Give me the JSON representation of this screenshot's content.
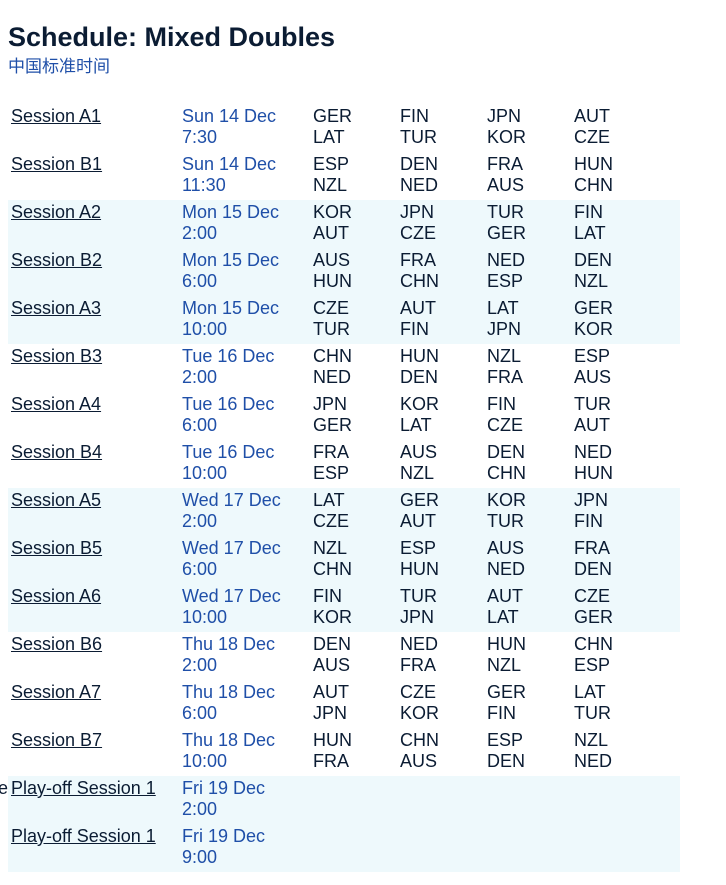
{
  "page": {
    "title": "Schedule: Mixed Doubles",
    "subtitle": "中国标准时间"
  },
  "sessions": [
    {
      "name": "Session A1",
      "day": "Sun 14 Dec",
      "time": "7:30",
      "matches": [
        [
          "GER",
          "LAT"
        ],
        [
          "FIN",
          "TUR"
        ],
        [
          "JPN",
          "KOR"
        ],
        [
          "AUT",
          "CZE"
        ]
      ]
    },
    {
      "name": "Session B1",
      "day": "Sun 14 Dec",
      "time": "11:30",
      "matches": [
        [
          "ESP",
          "NZL"
        ],
        [
          "DEN",
          "NED"
        ],
        [
          "FRA",
          "AUS"
        ],
        [
          "HUN",
          "CHN"
        ]
      ]
    },
    {
      "name": "Session A2",
      "day": "Mon 15 Dec",
      "time": "2:00",
      "matches": [
        [
          "KOR",
          "AUT"
        ],
        [
          "JPN",
          "CZE"
        ],
        [
          "TUR",
          "GER"
        ],
        [
          "FIN",
          "LAT"
        ]
      ]
    },
    {
      "name": "Session B2",
      "day": "Mon 15 Dec",
      "time": "6:00",
      "matches": [
        [
          "AUS",
          "HUN"
        ],
        [
          "FRA",
          "CHN"
        ],
        [
          "NED",
          "ESP"
        ],
        [
          "DEN",
          "NZL"
        ]
      ]
    },
    {
      "name": "Session A3",
      "day": "Mon 15 Dec",
      "time": "10:00",
      "matches": [
        [
          "CZE",
          "TUR"
        ],
        [
          "AUT",
          "FIN"
        ],
        [
          "LAT",
          "JPN"
        ],
        [
          "GER",
          "KOR"
        ]
      ]
    },
    {
      "name": "Session B3",
      "day": "Tue 16 Dec",
      "time": "2:00",
      "matches": [
        [
          "CHN",
          "NED"
        ],
        [
          "HUN",
          "DEN"
        ],
        [
          "NZL",
          "FRA"
        ],
        [
          "ESP",
          "AUS"
        ]
      ]
    },
    {
      "name": "Session A4",
      "day": "Tue 16 Dec",
      "time": "6:00",
      "matches": [
        [
          "JPN",
          "GER"
        ],
        [
          "KOR",
          "LAT"
        ],
        [
          "FIN",
          "CZE"
        ],
        [
          "TUR",
          "AUT"
        ]
      ]
    },
    {
      "name": "Session B4",
      "day": "Tue 16 Dec",
      "time": "10:00",
      "matches": [
        [
          "FRA",
          "ESP"
        ],
        [
          "AUS",
          "NZL"
        ],
        [
          "DEN",
          "CHN"
        ],
        [
          "NED",
          "HUN"
        ]
      ]
    },
    {
      "name": "Session A5",
      "day": "Wed 17 Dec",
      "time": "2:00",
      "matches": [
        [
          "LAT",
          "CZE"
        ],
        [
          "GER",
          "AUT"
        ],
        [
          "KOR",
          "TUR"
        ],
        [
          "JPN",
          "FIN"
        ]
      ]
    },
    {
      "name": "Session B5",
      "day": "Wed 17 Dec",
      "time": "6:00",
      "matches": [
        [
          "NZL",
          "CHN"
        ],
        [
          "ESP",
          "HUN"
        ],
        [
          "AUS",
          "NED"
        ],
        [
          "FRA",
          "DEN"
        ]
      ]
    },
    {
      "name": "Session A6",
      "day": "Wed 17 Dec",
      "time": "10:00",
      "matches": [
        [
          "FIN",
          "KOR"
        ],
        [
          "TUR",
          "JPN"
        ],
        [
          "AUT",
          "LAT"
        ],
        [
          "CZE",
          "GER"
        ]
      ]
    },
    {
      "name": "Session B6",
      "day": "Thu 18 Dec",
      "time": "2:00",
      "matches": [
        [
          "DEN",
          "AUS"
        ],
        [
          "NED",
          "FRA"
        ],
        [
          "HUN",
          "NZL"
        ],
        [
          "CHN",
          "ESP"
        ]
      ]
    },
    {
      "name": "Session A7",
      "day": "Thu 18 Dec",
      "time": "6:00",
      "matches": [
        [
          "AUT",
          "JPN"
        ],
        [
          "CZE",
          "KOR"
        ],
        [
          "GER",
          "FIN"
        ],
        [
          "LAT",
          "TUR"
        ]
      ]
    },
    {
      "name": "Session B7",
      "day": "Thu 18 Dec",
      "time": "10:00",
      "matches": [
        [
          "HUN",
          "FRA"
        ],
        [
          "CHN",
          "AUS"
        ],
        [
          "ESP",
          "DEN"
        ],
        [
          "NZL",
          "NED"
        ]
      ]
    },
    {
      "name": "Play-off Session 1",
      "day": "Fri 19 Dec",
      "time": "2:00",
      "marker": "e",
      "matches": []
    },
    {
      "name": "Play-off Session 1",
      "day": "Fri 19 Dec",
      "time": "9:00",
      "matches": []
    }
  ],
  "shading": {
    "shaded_rows": [
      2,
      3,
      4,
      8,
      9,
      10,
      14,
      15
    ],
    "shade_color": "#eef9fc",
    "date_color": "#1f4fa8"
  }
}
